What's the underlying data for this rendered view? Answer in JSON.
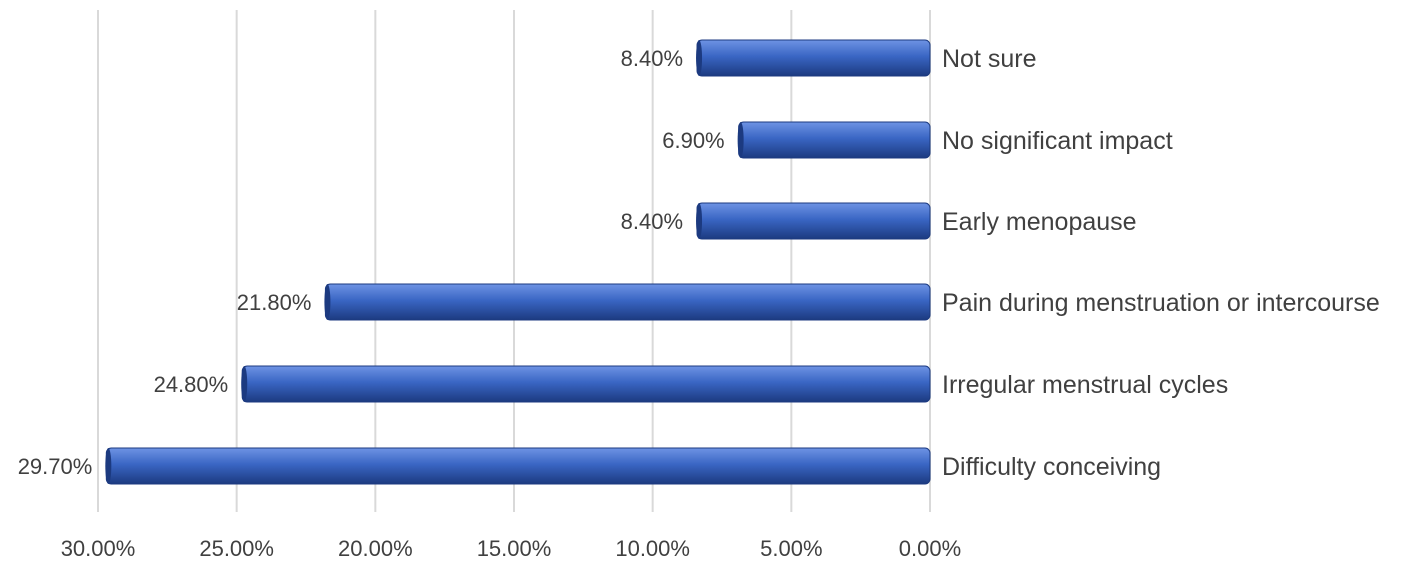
{
  "chart_data": {
    "type": "bar",
    "orientation": "horizontal",
    "x_axis_reversed": true,
    "categories": [
      "Not sure",
      "No significant impact",
      "Early menopause",
      "Pain during menstruation or intercourse",
      "Irregular menstrual cycles",
      "Difficulty conceiving"
    ],
    "values": [
      8.4,
      6.9,
      8.4,
      21.8,
      24.8,
      29.7
    ],
    "data_labels": [
      "8.40%",
      "6.90%",
      "8.40%",
      "21.80%",
      "24.80%",
      "29.70%"
    ],
    "xlim": [
      0,
      30
    ],
    "x_ticks": [
      30,
      25,
      20,
      15,
      10,
      5,
      0
    ],
    "x_tick_labels": [
      "30.00%",
      "25.00%",
      "20.00%",
      "15.00%",
      "10.00%",
      "5.00%",
      "0.00%"
    ],
    "title": "",
    "xlabel": "",
    "ylabel": "",
    "grid": "vertical",
    "legend": "none",
    "colors": {
      "bar": "#3a66c4",
      "bar_light": "#6e93e4",
      "bar_dark": "#1c3a80",
      "gridline": "#d9d9d9",
      "text": "#404040"
    }
  }
}
